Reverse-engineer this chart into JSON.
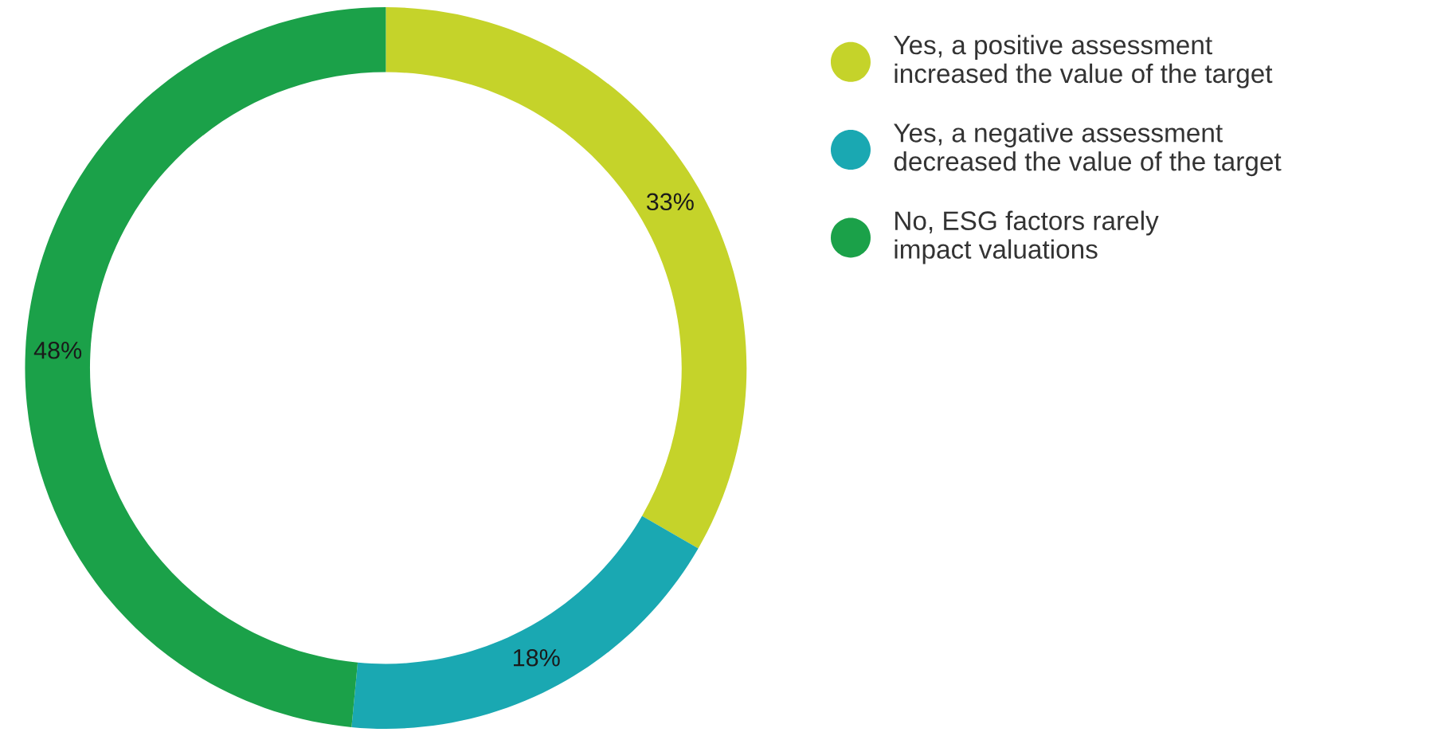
{
  "chart_data": {
    "type": "donut",
    "categories": [
      "Yes, a positive assessment\nincreased the value of the target",
      "Yes, a negative assessment\ndecreased the value of the target",
      "No, ESG factors rarely\nimpact valuations"
    ],
    "values": [
      33,
      18,
      48
    ],
    "colors": [
      "#c5d32a",
      "#1aa8b2",
      "#1ba149"
    ],
    "value_labels": [
      "33%",
      "18%",
      "48%"
    ],
    "legend": "right"
  }
}
